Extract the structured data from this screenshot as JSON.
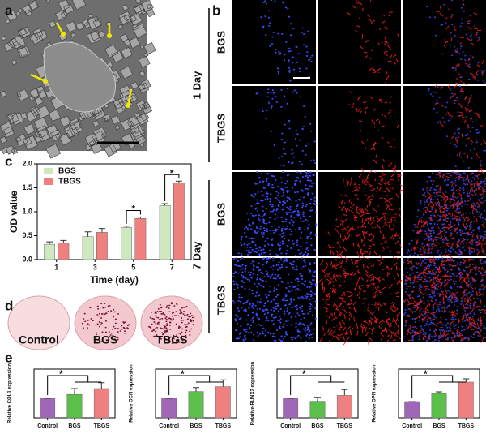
{
  "panels": {
    "a": "a",
    "b": "b",
    "c": "c",
    "d": "d",
    "e": "e"
  },
  "panel_b": {
    "groups": [
      "1 Day",
      "7 Day"
    ],
    "rows": [
      "BGS",
      "TBGS",
      "BGS",
      "TBGS"
    ]
  },
  "panel_d": {
    "dishes": [
      "Control",
      "BGS",
      "TBGS"
    ]
  },
  "chart_data": [
    {
      "type": "bar",
      "ylabel": "OD value",
      "xlabel": "Time (day)",
      "categories": [
        "1",
        "3",
        "5",
        "7"
      ],
      "series": [
        {
          "name": "BGS",
          "color": "#cfe8c0",
          "values": [
            0.32,
            0.48,
            0.67,
            1.13
          ],
          "errors": [
            0.05,
            0.1,
            0.03,
            0.04
          ]
        },
        {
          "name": "TBGS",
          "color": "#ef8080",
          "values": [
            0.35,
            0.57,
            0.86,
            1.6
          ],
          "errors": [
            0.05,
            0.08,
            0.03,
            0.04
          ]
        }
      ],
      "ylim": [
        0,
        2
      ],
      "yticks": [
        {
          "value": 0,
          "label": "0.0"
        },
        0.5,
        {
          "value": 1,
          "label": "1.0"
        },
        1.5,
        {
          "value": 2,
          "label": "2.0"
        }
      ],
      "legend": "upper left",
      "annotations": [
        "*",
        "*"
      ]
    },
    {
      "type": "bar",
      "ylabel": "Relative COL1 expression",
      "categories": [
        "Control",
        "BGS",
        "TBGS"
      ],
      "values": [
        1,
        1.2,
        1.5
      ],
      "errors": [
        0,
        0.3,
        0.3
      ],
      "colors": [
        "#a066b8",
        "#5cbf4a",
        "#ef8080"
      ],
      "ylim": [
        0,
        2.5
      ],
      "annotations": [
        "*"
      ]
    },
    {
      "type": "bar",
      "ylabel": "Relative OCN expression",
      "categories": [
        "Control",
        "BGS",
        "TBGS"
      ],
      "values": [
        1,
        1.35,
        1.6
      ],
      "errors": [
        0,
        0.2,
        0.35
      ],
      "colors": [
        "#a066b8",
        "#5cbf4a",
        "#ef8080"
      ],
      "ylim": [
        0,
        2.5
      ],
      "annotations": [
        "*"
      ]
    },
    {
      "type": "bar",
      "ylabel": "Relative RUNX2 expression",
      "categories": [
        "Control",
        "BGS",
        "TBGS"
      ],
      "values": [
        1,
        0.85,
        1.15
      ],
      "errors": [
        0,
        0.2,
        0.3
      ],
      "colors": [
        "#a066b8",
        "#5cbf4a",
        "#ef8080"
      ],
      "ylim": [
        0,
        2.5
      ],
      "annotations": [
        "*"
      ]
    },
    {
      "type": "bar",
      "ylabel": "Relative OPN expression",
      "categories": [
        "Control",
        "BGS",
        "TBGS"
      ],
      "values": [
        1,
        1.5,
        2.2
      ],
      "errors": [
        0,
        0.1,
        0.2
      ],
      "colors": [
        "#a066b8",
        "#5cbf4a",
        "#ef8080"
      ],
      "ylim": [
        0,
        3
      ],
      "annotations": [
        "*"
      ]
    }
  ]
}
